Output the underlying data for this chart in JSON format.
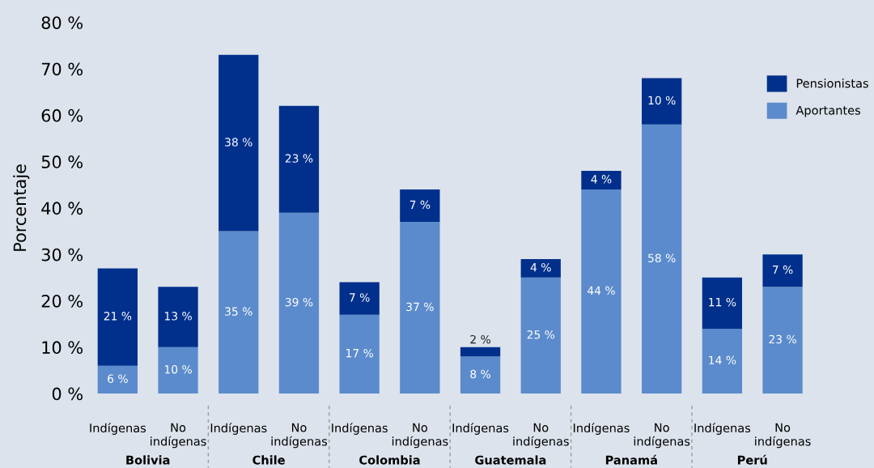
{
  "chart_data": {
    "type": "bar",
    "stacked": true,
    "ylabel": "Porcentaje",
    "categories": [
      "Indígenas",
      "No\nindígenas",
      "Indígenas",
      "No\nindígenas",
      "Indígenas",
      "No\nindígenas",
      "Indígenas",
      "No\nindígenas",
      "Indígenas",
      "No\nindígenas",
      "Indígenas",
      "No\nindígenas"
    ],
    "series": [
      {
        "name": "Aportantes",
        "color": "#5b8bcc",
        "values": [
          6,
          10,
          35,
          39,
          17,
          37,
          8,
          25,
          44,
          58,
          14,
          23
        ],
        "value_labels": [
          "6 %",
          "10 %",
          "35 %",
          "39 %",
          "17 %",
          "37 %",
          "8 %",
          "25 %",
          "44 %",
          "58 %",
          "14 %",
          "23 %"
        ]
      },
      {
        "name": "Pensionistas",
        "color": "#00308c",
        "values": [
          21,
          13,
          38,
          23,
          7,
          7,
          2,
          4,
          4,
          10,
          11,
          7
        ],
        "value_labels": [
          "21 %",
          "13 %",
          "38 %",
          "23 %",
          "7 %",
          "7 %",
          "2 %",
          "4 %",
          "4 %",
          "10 %",
          "11 %",
          "7 %"
        ]
      }
    ],
    "ylim": [
      0,
      80
    ],
    "yticks": [
      {
        "value": 0,
        "label": "0 %"
      },
      {
        "value": 10,
        "label": "10 %"
      },
      {
        "value": 20,
        "label": "20 %"
      },
      {
        "value": 30,
        "label": "30 %"
      },
      {
        "value": 40,
        "label": "40 %"
      },
      {
        "value": 50,
        "label": "50 %"
      },
      {
        "value": 60,
        "label": "60 %"
      },
      {
        "value": 70,
        "label": "70 %"
      },
      {
        "value": 80,
        "label": "80 %"
      }
    ],
    "grid": false,
    "legend": "top right",
    "annotations": [
      "Bolivia",
      "Chile",
      "Colombia",
      "Guatemala",
      "Panamá",
      "Perú"
    ]
  }
}
